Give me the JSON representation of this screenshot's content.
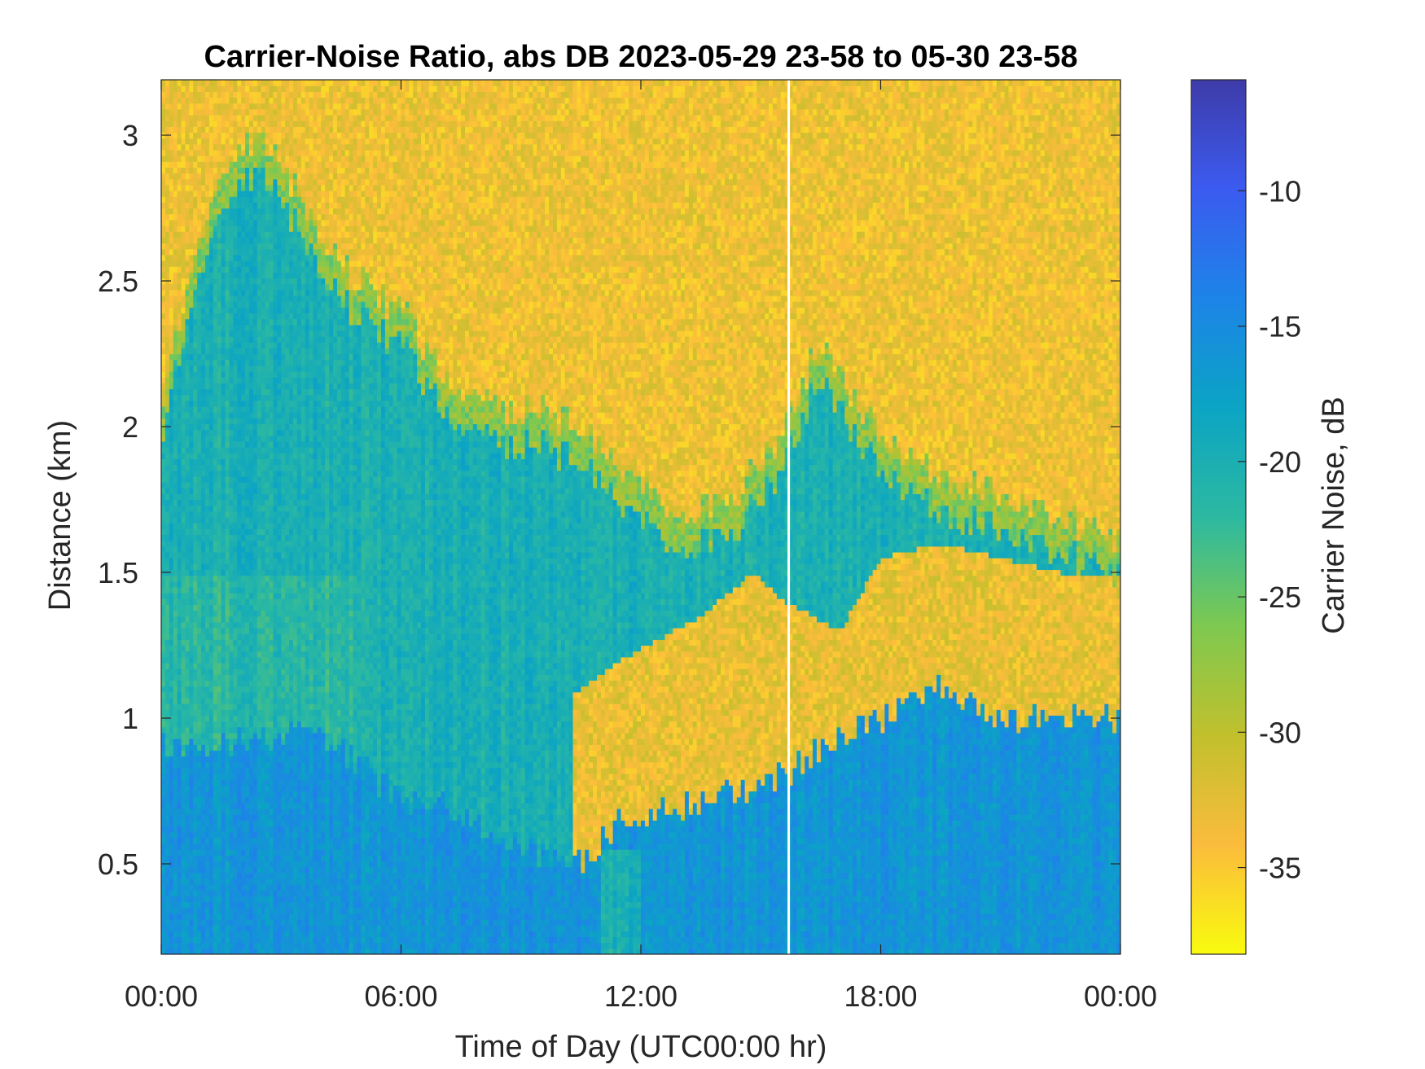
{
  "chart_data": {
    "type": "heatmap",
    "title": "Carrier-Noise Ratio, abs DB 2023-05-29 23-58 to 05-30 23-58",
    "xlabel": "Time of Day (UTC00:00 hr)",
    "ylabel": "Distance (km)",
    "x_ticks": [
      {
        "label": "00:00",
        "value": 0
      },
      {
        "label": "06:00",
        "value": 6
      },
      {
        "label": "12:00",
        "value": 12
      },
      {
        "label": "18:00",
        "value": 18
      },
      {
        "label": "00:00",
        "value": 24
      }
    ],
    "y_ticks": [
      {
        "label": "0.5",
        "value": 0.5
      },
      {
        "label": "1",
        "value": 1
      },
      {
        "label": "1.5",
        "value": 1.5
      },
      {
        "label": "2",
        "value": 2
      },
      {
        "label": "2.5",
        "value": 2.5
      },
      {
        "label": "3",
        "value": 3
      }
    ],
    "xlim": [
      0,
      24
    ],
    "ylim": [
      0.19,
      3.19
    ],
    "colorbar": {
      "label": "Carrier Noise, dB",
      "range": [
        -38.2,
        -5.9
      ],
      "ticks": [
        {
          "label": "-10",
          "value": -10
        },
        {
          "label": "-15",
          "value": -15
        },
        {
          "label": "-20",
          "value": -20
        },
        {
          "label": "-25",
          "value": -25
        },
        {
          "label": "-30",
          "value": -30
        },
        {
          "label": "-35",
          "value": -35
        }
      ],
      "colormap": "parula-reversed",
      "stops": [
        "#f9fb0e",
        "#fbbc3c",
        "#c1c02c",
        "#7ec950",
        "#2cb9a1",
        "#0ba4c4",
        "#1d84e8",
        "#3b5bf0",
        "#3e3ba8"
      ]
    },
    "data_gap": {
      "time_hr": 15.7,
      "color": "#ffffff"
    },
    "regions": {
      "upper_noise_boundary_km": [
        {
          "t": 0,
          "km": 2.1
        },
        {
          "t": 1.5,
          "km": 2.9
        },
        {
          "t": 2.5,
          "km": 3.0
        },
        {
          "t": 4.5,
          "km": 2.55
        },
        {
          "t": 6,
          "km": 2.4
        },
        {
          "t": 7.5,
          "km": 2.1
        },
        {
          "t": 9.5,
          "km": 2.05
        },
        {
          "t": 11,
          "km": 1.95
        },
        {
          "t": 12.5,
          "km": 1.72
        },
        {
          "t": 14,
          "km": 1.72
        },
        {
          "t": 15.5,
          "km": 1.95
        },
        {
          "t": 16.5,
          "km": 2.3
        },
        {
          "t": 18,
          "km": 1.95
        },
        {
          "t": 20,
          "km": 1.8
        },
        {
          "t": 22,
          "km": 1.72
        },
        {
          "t": 24,
          "km": 1.6
        }
      ],
      "lower_noise_boundary_km": [
        {
          "t": 10.5,
          "km": 1.1
        },
        {
          "t": 11.5,
          "km": 1.2
        },
        {
          "t": 13.5,
          "km": 1.35
        },
        {
          "t": 14.8,
          "km": 1.5
        },
        {
          "t": 15.6,
          "km": 1.4
        },
        {
          "t": 17,
          "km": 1.3
        },
        {
          "t": 18,
          "km": 1.55
        },
        {
          "t": 19.5,
          "km": 1.6
        },
        {
          "t": 21,
          "km": 1.55
        },
        {
          "t": 22.5,
          "km": 1.5
        },
        {
          "t": 24,
          "km": 1.5
        }
      ],
      "boundary_layer_top_km": [
        {
          "t": 0,
          "km": 0.9
        },
        {
          "t": 4,
          "km": 0.95
        },
        {
          "t": 6,
          "km": 0.72
        },
        {
          "t": 7.5,
          "km": 0.68
        },
        {
          "t": 9,
          "km": 0.55
        },
        {
          "t": 10.5,
          "km": 0.5
        },
        {
          "t": 11.5,
          "km": 0.65
        },
        {
          "t": 13,
          "km": 0.7
        },
        {
          "t": 14.5,
          "km": 0.75
        },
        {
          "t": 15.5,
          "km": 0.8
        },
        {
          "t": 16.5,
          "km": 0.9
        },
        {
          "t": 18,
          "km": 1.0
        },
        {
          "t": 19.5,
          "km": 1.1
        },
        {
          "t": 21,
          "km": 1.0
        },
        {
          "t": 24,
          "km": 1.0
        }
      ]
    }
  }
}
